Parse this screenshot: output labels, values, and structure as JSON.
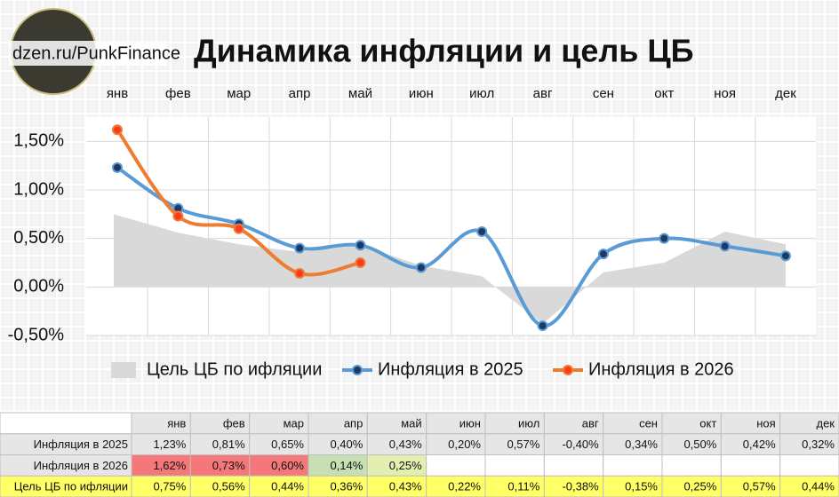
{
  "chart_data": {
    "type": "line",
    "title": "Динамика инфляции и цель ЦБ",
    "source": "dzen.ru/PunkFinance",
    "categories": [
      "янв",
      "фев",
      "мар",
      "апр",
      "май",
      "июн",
      "июл",
      "авг",
      "сен",
      "окт",
      "ноя",
      "дек"
    ],
    "ylim": [
      -0.5,
      1.75
    ],
    "yticks": [
      {
        "value": -0.5,
        "label": "-0,50%"
      },
      {
        "value": 0,
        "label": "0,00%"
      },
      {
        "value": 0.5,
        "label": "0,50%"
      },
      {
        "value": 1,
        "label": "1,00%"
      },
      {
        "value": 1.5,
        "label": "1,50%"
      }
    ],
    "grid": true,
    "legend": "bottom",
    "series": [
      {
        "name": "Инфляция в 2025",
        "kind": "line",
        "color": "#5b9bd5",
        "marker_color": "#1f3864",
        "values": [
          1.23,
          0.81,
          0.65,
          0.4,
          0.43,
          0.2,
          0.57,
          -0.4,
          0.34,
          0.5,
          0.42,
          0.32
        ],
        "value_labels": [
          "1,23%",
          "0,81%",
          "0,65%",
          "0,40%",
          "0,43%",
          "0,20%",
          "0,57%",
          "-0,40%",
          "0,34%",
          "0,50%",
          "0,42%",
          "0,32%"
        ],
        "row_color": "#e7e6e6"
      },
      {
        "name": "Инфляция в 2026",
        "kind": "line",
        "color": "#ed7d31",
        "marker_color": "#ff3b1f",
        "values": [
          1.62,
          0.73,
          0.6,
          0.14,
          0.25,
          null,
          null,
          null,
          null,
          null,
          null,
          null
        ],
        "value_labels": [
          "1,62%",
          "0,73%",
          "0,60%",
          "0,14%",
          "0,25%",
          null,
          null,
          null,
          null,
          null,
          null,
          null
        ],
        "cell_colors": [
          "#f4777a",
          "#f4777a",
          "#f4777a",
          "#c6e0b4",
          "#e2efb0",
          "#ffffff",
          "#ffffff",
          "#ffffff",
          "#ffffff",
          "#ffffff",
          "#ffffff",
          "#ffffff"
        ],
        "row_color": "#e7e6e6"
      },
      {
        "name": "Цель ЦБ по ифляции",
        "kind": "area",
        "color": "#d9d9d9",
        "values": [
          0.75,
          0.56,
          0.44,
          0.36,
          0.43,
          0.22,
          0.11,
          -0.38,
          0.15,
          0.25,
          0.57,
          0.44
        ],
        "value_labels": [
          "0,75%",
          "0,56%",
          "0,44%",
          "0,36%",
          "0,43%",
          "0,22%",
          "0,11%",
          "-0,38%",
          "0,15%",
          "0,25%",
          "0,57%",
          "0,44%"
        ],
        "row_color": "#ffff66"
      }
    ]
  }
}
